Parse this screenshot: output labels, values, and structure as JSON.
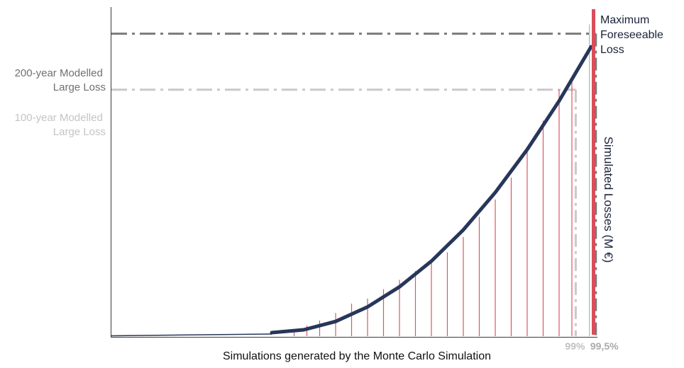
{
  "chart_data": {
    "type": "area",
    "xlabel": "Simulations generated by the Monte Carlo Simulation",
    "ylabel": "Simulated Losses (M €)",
    "curve": {
      "color": "#27365a",
      "x": [
        0,
        10,
        20,
        30,
        40,
        50,
        60,
        70,
        80,
        90,
        100
      ],
      "y": [
        0,
        0.6,
        2.4,
        5.5,
        9.8,
        15.3,
        22.0,
        30.0,
        39.2,
        49.6,
        61.2
      ]
    },
    "bars": {
      "color": "#e05560",
      "x": [
        7,
        11,
        15,
        20,
        25,
        30,
        35,
        40,
        45,
        50,
        55,
        60,
        65,
        70,
        75,
        80,
        85,
        90,
        94
      ],
      "y": [
        0.4,
        1.5,
        2.6,
        4.2,
        6.2,
        7.3,
        9.3,
        11.3,
        13.2,
        15.1,
        17.2,
        20.5,
        24.8,
        28.5,
        33.2,
        38.7,
        45.4,
        52.0,
        54.2
      ]
    },
    "percentile_bar": {
      "x": 99.5,
      "y": 66,
      "color": "#bbbbbb"
    },
    "reference_lines": [
      {
        "label": "200-year Modelled Large Loss",
        "y": 64,
        "x_end": 101.5,
        "color": "#7a7a7a"
      },
      {
        "label": "100-year Modelled Large Loss",
        "y": 52,
        "x_end": 95.2,
        "color": "#c9c9c9"
      }
    ],
    "percentile_labels": [
      {
        "text": "99%",
        "x": 95.2,
        "color": "#c0c0c0"
      },
      {
        "text": "99,5%",
        "x": 101.5,
        "color": "#aaaaaa"
      }
    ],
    "max_loss": {
      "label": "Maximum Foreseeable Loss",
      "color": "#d94e5a"
    }
  }
}
